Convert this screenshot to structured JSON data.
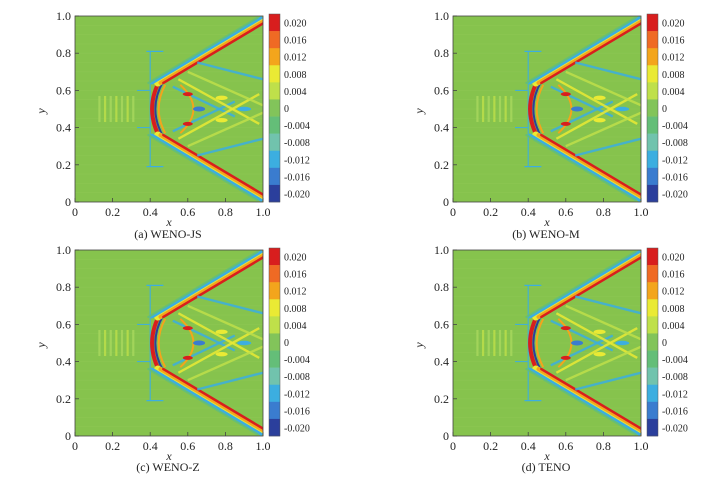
{
  "figure": {
    "x_axis_label": "x",
    "y_axis_label": "y",
    "colorbar_values": [
      "0.020",
      "0.016",
      "0.012",
      "0.008",
      "0.004",
      "0",
      "-0.004",
      "-0.008",
      "-0.012",
      "-0.016",
      "-0.020"
    ],
    "colorbar_colors": [
      "#d81e1e",
      "#ef6a24",
      "#f3a51c",
      "#eaea34",
      "#bfe04a",
      "#82c45a",
      "#64be78",
      "#71c3ad",
      "#3caee0",
      "#3a7ccf",
      "#2b3f9c"
    ],
    "field_color": "#86c34d"
  },
  "chart_data": [
    {
      "type": "heatmap",
      "panel": "(a)",
      "caption": "(a)  WENO-JS",
      "xlabel": "x",
      "ylabel": "y",
      "xlim": [
        0,
        1
      ],
      "ylim": [
        0,
        1
      ],
      "x_ticks": [
        "0",
        "0.2",
        "0.4",
        "0.6",
        "0.8",
        "1.0"
      ],
      "y_ticks": [
        "0",
        "0.2",
        "0.4",
        "0.6",
        "0.8",
        "1.0"
      ],
      "color_scale": [
        0.02,
        0.016,
        0.012,
        0.008,
        0.004,
        0,
        -0.004,
        -0.008,
        -0.012,
        -0.016,
        -0.02
      ],
      "value_range": [
        -0.02,
        0.02
      ]
    },
    {
      "type": "heatmap",
      "panel": "(b)",
      "caption": "(b)  WENO-M",
      "xlabel": "x",
      "ylabel": "y",
      "xlim": [
        0,
        1
      ],
      "ylim": [
        0,
        1
      ],
      "x_ticks": [
        "0",
        "0.2",
        "0.4",
        "0.6",
        "0.8",
        "1.0"
      ],
      "y_ticks": [
        "0",
        "0.2",
        "0.4",
        "0.6",
        "0.8",
        "1.0"
      ],
      "color_scale": [
        0.02,
        0.016,
        0.012,
        0.008,
        0.004,
        0,
        -0.004,
        -0.008,
        -0.012,
        -0.016,
        -0.02
      ],
      "value_range": [
        -0.02,
        0.02
      ]
    },
    {
      "type": "heatmap",
      "panel": "(c)",
      "caption": "(c)  WENO-Z",
      "xlabel": "x",
      "ylabel": "y",
      "xlim": [
        0,
        1
      ],
      "ylim": [
        0,
        1
      ],
      "x_ticks": [
        "0",
        "0.2",
        "0.4",
        "0.6",
        "0.8",
        "1.0"
      ],
      "y_ticks": [
        "0",
        "0.2",
        "0.4",
        "0.6",
        "0.8",
        "1.0"
      ],
      "color_scale": [
        0.02,
        0.016,
        0.012,
        0.008,
        0.004,
        0,
        -0.004,
        -0.008,
        -0.012,
        -0.016,
        -0.02
      ],
      "value_range": [
        -0.02,
        0.02
      ]
    },
    {
      "type": "heatmap",
      "panel": "(d)",
      "caption": "(d)  TENO",
      "xlabel": "x",
      "ylabel": "y",
      "xlim": [
        0,
        1
      ],
      "ylim": [
        0,
        1
      ],
      "x_ticks": [
        "0",
        "0.2",
        "0.4",
        "0.6",
        "0.8",
        "1.0"
      ],
      "y_ticks": [
        "0",
        "0.2",
        "0.4",
        "0.6",
        "0.8",
        "1.0"
      ],
      "color_scale": [
        0.02,
        0.016,
        0.012,
        0.008,
        0.004,
        0,
        -0.004,
        -0.008,
        -0.012,
        -0.016,
        -0.02
      ],
      "value_range": [
        -0.02,
        0.02
      ]
    }
  ]
}
